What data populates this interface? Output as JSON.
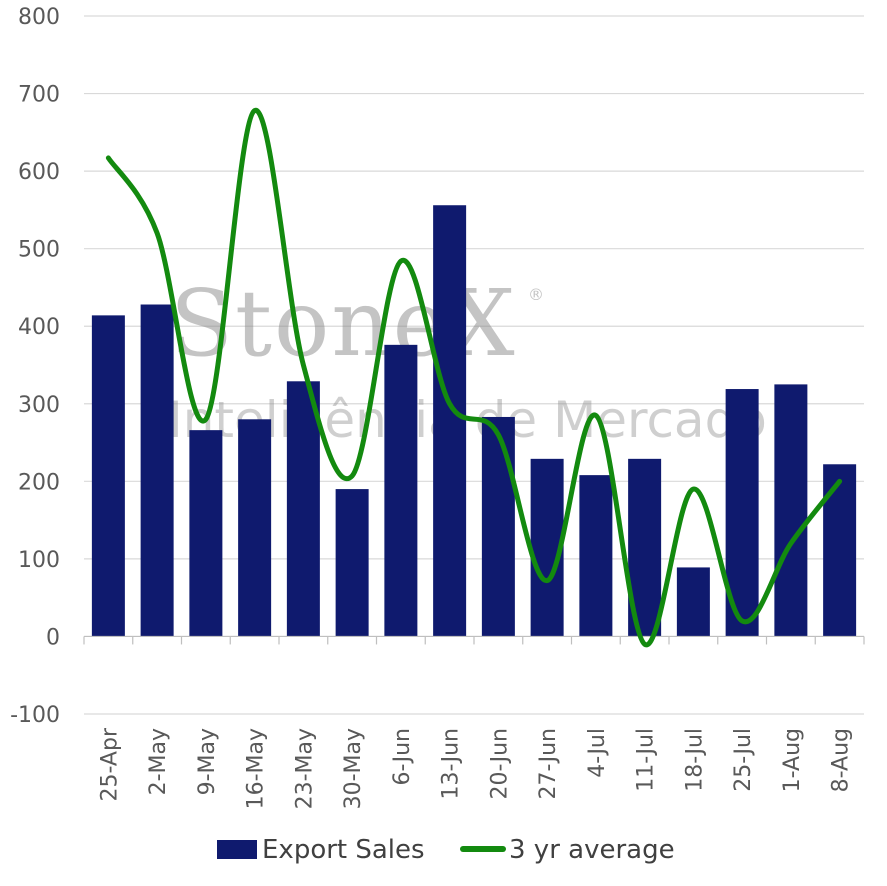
{
  "watermark": {
    "logo": "StoneX",
    "registered": "®",
    "subtitle": "Inteligência de Mercado"
  },
  "chart_data": {
    "type": "bar",
    "categories": [
      "25-Apr",
      "2-May",
      "9-May",
      "16-May",
      "23-May",
      "30-May",
      "6-Jun",
      "13-Jun",
      "20-Jun",
      "27-Jun",
      "4-Jul",
      "11-Jul",
      "18-Jul",
      "25-Jul",
      "1-Aug",
      "8-Aug"
    ],
    "series": [
      {
        "name": "Export Sales",
        "type": "bar",
        "color": "#0f1a6e",
        "values": [
          414,
          428,
          266,
          280,
          329,
          190,
          376,
          556,
          283,
          229,
          208,
          229,
          89,
          319,
          325,
          222
        ]
      },
      {
        "name": "3 yr average",
        "type": "line",
        "smooth": true,
        "color": "#138a0f",
        "values": [
          617,
          520,
          280,
          678,
          350,
          207,
          484,
          300,
          260,
          72,
          285,
          -10,
          190,
          20,
          120,
          200
        ]
      }
    ],
    "ylim": [
      -100,
      800
    ],
    "yticks": [
      -100,
      0,
      100,
      200,
      300,
      400,
      500,
      600,
      700,
      800
    ],
    "grid": true,
    "legend": "bottom",
    "title": "",
    "xlabel": "",
    "ylabel": ""
  }
}
